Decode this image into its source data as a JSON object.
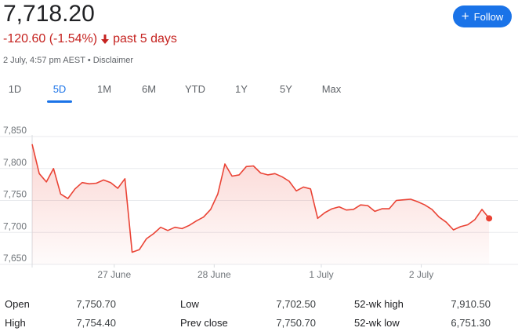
{
  "quote": {
    "price": "7,718.20",
    "change": "-120.60 (-1.54%)",
    "period": "past 5 days",
    "timestamp": "2 July, 4:57 pm AEST",
    "separator": "•",
    "disclaimer": "Disclaimer",
    "down_color": "#c5221f"
  },
  "follow": {
    "label": "Follow",
    "icon": "plus-icon",
    "color": "#1a73e8"
  },
  "tabs": [
    {
      "label": "1D",
      "active": false
    },
    {
      "label": "5D",
      "active": true
    },
    {
      "label": "1M",
      "active": false
    },
    {
      "label": "6M",
      "active": false
    },
    {
      "label": "YTD",
      "active": false
    },
    {
      "label": "1Y",
      "active": false
    },
    {
      "label": "5Y",
      "active": false
    },
    {
      "label": "Max",
      "active": false
    }
  ],
  "chart_data": {
    "type": "area",
    "ylim": [
      7650,
      7850
    ],
    "y_ticks": [
      "7,850",
      "7,800",
      "7,750",
      "7,700",
      "7,650"
    ],
    "y_tick_values": [
      7850,
      7800,
      7750,
      7700,
      7650
    ],
    "x_labels": [
      "27 June",
      "28 June",
      "1 July",
      "2 July"
    ],
    "x_label_positions": [
      11.5,
      25.5,
      40.5,
      54.5
    ],
    "x_max": 67.5,
    "line_color": "#ea4335",
    "grid": true,
    "points": [
      [
        0,
        7838
      ],
      [
        1,
        7792
      ],
      [
        2,
        7779
      ],
      [
        3,
        7800
      ],
      [
        4,
        7760
      ],
      [
        5,
        7753
      ],
      [
        6,
        7768
      ],
      [
        7,
        7778
      ],
      [
        8,
        7776
      ],
      [
        9,
        7777
      ],
      [
        10,
        7782
      ],
      [
        11,
        7778
      ],
      [
        12,
        7769
      ],
      [
        13,
        7784
      ],
      [
        14,
        7669
      ],
      [
        15,
        7673
      ],
      [
        16,
        7690
      ],
      [
        17,
        7698
      ],
      [
        18,
        7708
      ],
      [
        19,
        7703
      ],
      [
        20,
        7708
      ],
      [
        21,
        7706
      ],
      [
        22,
        7711
      ],
      [
        23,
        7718
      ],
      [
        24,
        7724
      ],
      [
        25,
        7736
      ],
      [
        26,
        7760
      ],
      [
        27,
        7807
      ],
      [
        28,
        7788
      ],
      [
        29,
        7790
      ],
      [
        30,
        7803
      ],
      [
        31,
        7804
      ],
      [
        32,
        7793
      ],
      [
        33,
        7790
      ],
      [
        34,
        7792
      ],
      [
        35,
        7787
      ],
      [
        36,
        7780
      ],
      [
        37,
        7765
      ],
      [
        38,
        7771
      ],
      [
        39,
        7768
      ],
      [
        40,
        7722
      ],
      [
        41,
        7731
      ],
      [
        42,
        7737
      ],
      [
        43,
        7740
      ],
      [
        44,
        7735
      ],
      [
        45,
        7736
      ],
      [
        46,
        7743
      ],
      [
        47,
        7742
      ],
      [
        48,
        7733
      ],
      [
        49,
        7737
      ],
      [
        50,
        7737
      ],
      [
        51,
        7750
      ],
      [
        52,
        7751
      ],
      [
        53,
        7752
      ],
      [
        54,
        7748
      ],
      [
        55,
        7743
      ],
      [
        56,
        7736
      ],
      [
        57,
        7724
      ],
      [
        58,
        7716
      ],
      [
        59,
        7704
      ],
      [
        60,
        7709
      ],
      [
        61,
        7712
      ],
      [
        62,
        7720
      ],
      [
        63,
        7736
      ],
      [
        64,
        7722
      ]
    ]
  },
  "stats": {
    "rows": [
      [
        {
          "label": "Open",
          "value": "7,750.70"
        },
        {
          "label": "Low",
          "value": "7,702.50"
        },
        {
          "label": "52-wk high",
          "value": "7,910.50"
        }
      ],
      [
        {
          "label": "High",
          "value": "7,754.40"
        },
        {
          "label": "Prev close",
          "value": "7,750.70"
        },
        {
          "label": "52-wk low",
          "value": "6,751.30"
        }
      ]
    ]
  }
}
